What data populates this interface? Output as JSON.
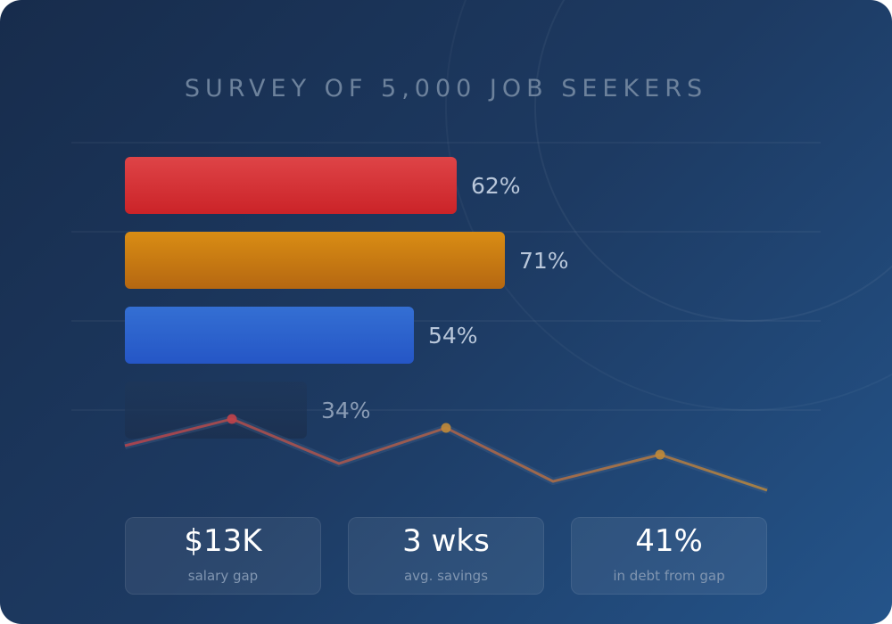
{
  "title": "SURVEY OF 5,000 JOB SEEKERS",
  "chart_data": {
    "type": "bar",
    "orientation": "horizontal",
    "values": [
      62,
      71,
      54,
      34
    ],
    "value_labels": [
      "62%",
      "71%",
      "54%",
      "34%"
    ],
    "xlim": [
      0,
      100
    ],
    "colors": [
      "#dc3a3e",
      "#d4870f",
      "#2d67d0",
      "#1e3656"
    ],
    "grid": true,
    "legend": "none",
    "trend_line": {
      "values": [
        0,
        1,
        0.33,
        0.67,
        0,
        0.33,
        0
      ],
      "markers": [
        1,
        3,
        5
      ],
      "colors": [
        "#c0434a",
        "#c08a38"
      ]
    }
  },
  "stats": [
    {
      "value": "$13K",
      "label": "salary gap"
    },
    {
      "value": "3 wks",
      "label": "avg. savings"
    },
    {
      "value": "41%",
      "label": "in debt from gap"
    }
  ]
}
